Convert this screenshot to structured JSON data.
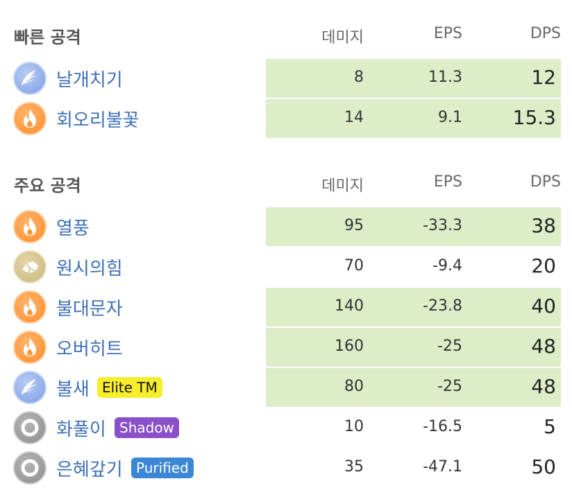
{
  "fast_attacks": {
    "title": "빠른 공격",
    "columns": {
      "damage": "데미지",
      "eps": "EPS",
      "dps": "DPS"
    },
    "moves": [
      {
        "name": "날개치기",
        "icon": "flying-wing-icon",
        "type_color": "#7d9fe6",
        "damage": "8",
        "eps": "11.3",
        "dps": "12",
        "highlighted": true
      },
      {
        "name": "회오리불꽃",
        "icon": "fire-flame-icon",
        "type_color": "#ff8c2e",
        "damage": "14",
        "eps": "9.1",
        "dps": "15.3",
        "highlighted": true
      }
    ]
  },
  "charged_attacks": {
    "title": "주요 공격",
    "columns": {
      "damage": "데미지",
      "eps": "EPS",
      "dps": "DPS"
    },
    "moves": [
      {
        "name": "열풍",
        "icon": "fire-flame-icon",
        "type_color": "#ff8c2e",
        "damage": "95",
        "eps": "-33.3",
        "dps": "38",
        "highlighted": true
      },
      {
        "name": "원시의힘",
        "icon": "rock-icon",
        "type_color": "#c8b77c",
        "damage": "70",
        "eps": "-9.4",
        "dps": "20",
        "highlighted": false
      },
      {
        "name": "불대문자",
        "icon": "fire-flame-icon",
        "type_color": "#ff8c2e",
        "damage": "140",
        "eps": "-23.8",
        "dps": "40",
        "highlighted": true
      },
      {
        "name": "오버히트",
        "icon": "fire-flame-icon",
        "type_color": "#ff8c2e",
        "damage": "160",
        "eps": "-25",
        "dps": "48",
        "highlighted": true
      },
      {
        "name": "불새",
        "icon": "flying-wing-icon",
        "type_color": "#7d9fe6",
        "badge": "Elite TM",
        "badge_color": "#f7ee2b",
        "damage": "80",
        "eps": "-25",
        "dps": "48",
        "highlighted": true
      },
      {
        "name": "화풀이",
        "icon": "normal-ring-icon",
        "type_color": "#8d8d8d",
        "badge": "Shadow",
        "badge_color": "#8a4fc9",
        "damage": "10",
        "eps": "-16.5",
        "dps": "5",
        "highlighted": false
      },
      {
        "name": "은혜갚기",
        "icon": "normal-ring-icon",
        "type_color": "#8d8d8d",
        "badge": "Purified",
        "badge_color": "#3c86d6",
        "damage": "35",
        "eps": "-47.1",
        "dps": "50",
        "highlighted": false
      }
    ]
  }
}
